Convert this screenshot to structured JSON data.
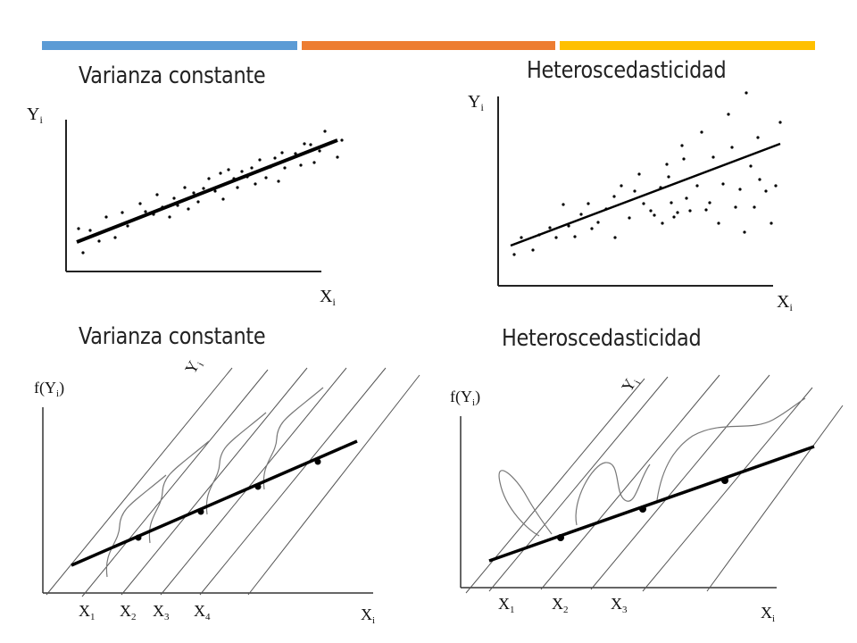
{
  "header": {
    "bars": [
      {
        "color": "#5B9BD5"
      },
      {
        "color": "#ED7D31"
      },
      {
        "color": "#FFC000"
      }
    ]
  },
  "panels": {
    "top_left": {
      "title": "Varianza constante",
      "y_label": "Y",
      "y_sub": "i",
      "x_label": "X",
      "x_sub": "i"
    },
    "top_right": {
      "title": "Heteroscedasticidad",
      "y_label": "Y",
      "y_sub": "i",
      "x_label": "X",
      "x_sub": "i"
    },
    "bottom_left": {
      "title": "Varianza constante",
      "y_label": "f(Y",
      "y_sub": "i",
      "y_close": ")",
      "diag_label": "Y",
      "diag_sub": "i",
      "x_label": "X",
      "x_sub": "i",
      "ticks": [
        {
          "label": "X",
          "sub": "1"
        },
        {
          "label": "X",
          "sub": "2"
        },
        {
          "label": "X",
          "sub": "3"
        },
        {
          "label": "X",
          "sub": "4"
        }
      ]
    },
    "bottom_right": {
      "title": "Heteroscedasticidad",
      "y_label": "f(Y",
      "y_sub": "i",
      "y_close": ")",
      "diag_label": "Y",
      "diag_sub": "i",
      "x_label": "X",
      "x_sub": "i",
      "ticks": [
        {
          "label": "X",
          "sub": "1"
        },
        {
          "label": "X",
          "sub": "2"
        },
        {
          "label": "X",
          "sub": "3"
        }
      ]
    }
  }
}
